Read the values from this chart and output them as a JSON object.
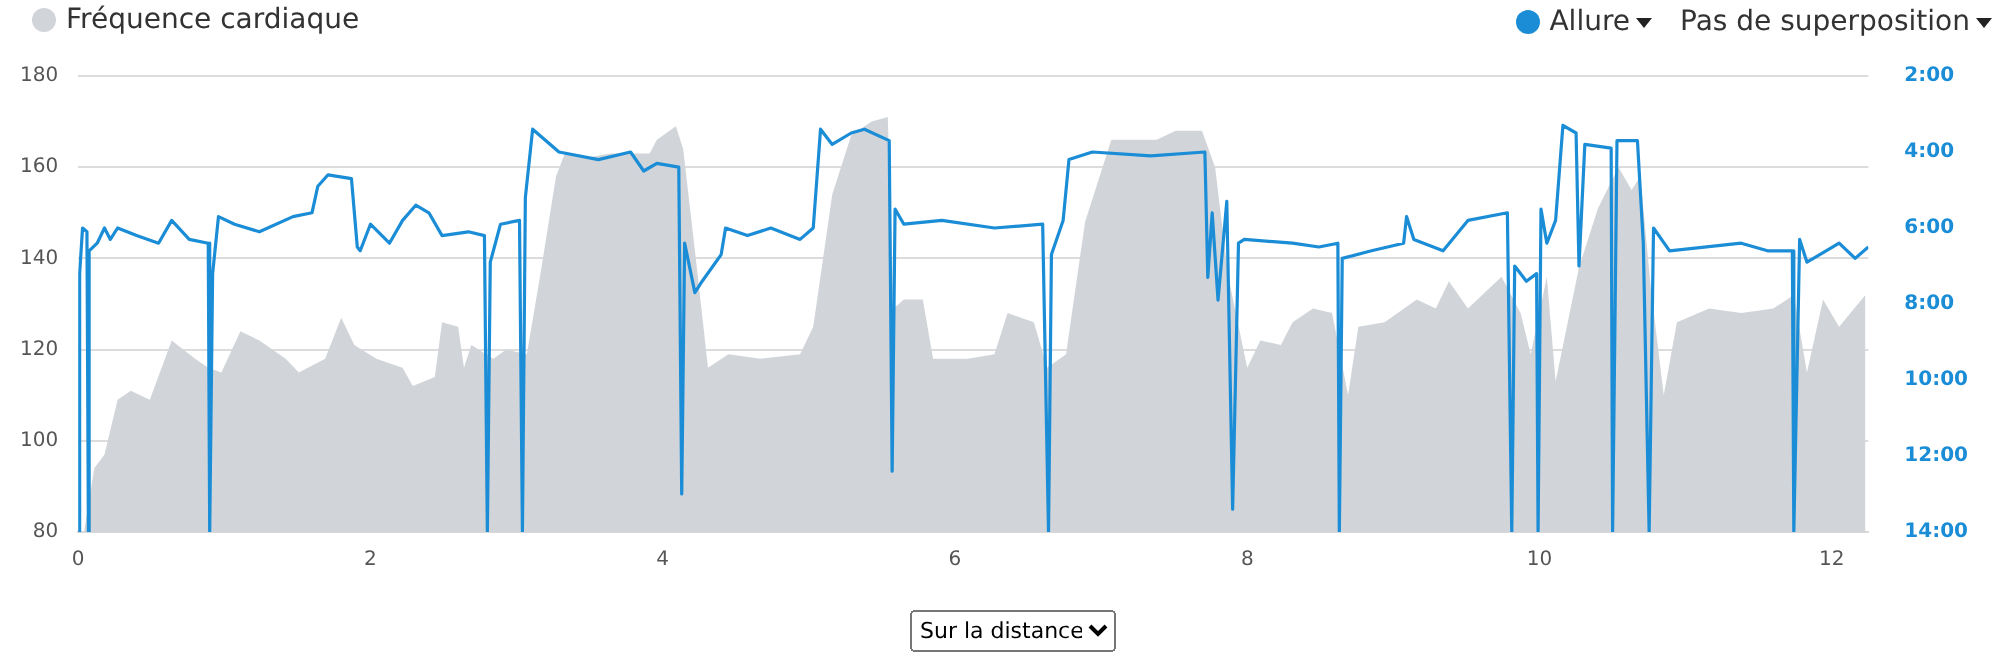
{
  "chart_data": {
    "type": "area",
    "xlim": [
      0,
      12.25
    ],
    "xticks": [
      0,
      2,
      4,
      6,
      8,
      10,
      12
    ],
    "ylim": [
      80,
      180
    ],
    "yticks": [
      80,
      100,
      120,
      140,
      160,
      180
    ],
    "y2lim": [
      14,
      2
    ],
    "y2ticks": [
      {
        "value": 2,
        "label": "2:00"
      },
      {
        "value": 4,
        "label": "4:00"
      },
      {
        "value": 6,
        "label": "6:00"
      },
      {
        "value": 8,
        "label": "8:00"
      },
      {
        "value": 10,
        "label": "10:00"
      },
      {
        "value": 12,
        "label": "12:00"
      },
      {
        "value": 14,
        "label": "14:00"
      }
    ],
    "grid": "y",
    "legend": "top",
    "marker": "none",
    "annotations": [
      "Pas de superposition",
      "Sur la distance"
    ],
    "series": [
      {
        "name": "Fréquence cardiaque",
        "type": "area",
        "color": "#d1d5da",
        "x": [
          0.04,
          0.11,
          0.18,
          0.27,
          0.36,
          0.49,
          0.64,
          0.8,
          0.89,
          0.98,
          1.11,
          1.24,
          1.42,
          1.51,
          1.69,
          1.8,
          1.89,
          2.04,
          2.22,
          2.29,
          2.44,
          2.49,
          2.6,
          2.64,
          2.69,
          2.84,
          2.93,
          3.07,
          3.16,
          3.27,
          3.33,
          3.47,
          3.64,
          3.91,
          3.96,
          4.09,
          4.14,
          4.23,
          4.31,
          4.45,
          4.67,
          4.94,
          5.03,
          5.16,
          5.29,
          5.43,
          5.54,
          5.58,
          5.65,
          5.78,
          5.85,
          6.09,
          6.27,
          6.36,
          6.54,
          6.63,
          6.76,
          6.89,
          7.07,
          7.38,
          7.51,
          7.69,
          7.78,
          7.87,
          8.0,
          8.09,
          8.23,
          8.31,
          8.45,
          8.58,
          8.69,
          8.76,
          8.94,
          9.16,
          9.29,
          9.38,
          9.51,
          9.74,
          9.87,
          9.94,
          10.05,
          10.11,
          10.27,
          10.4,
          10.54,
          10.63,
          10.69,
          10.76,
          10.85,
          10.94,
          11.16,
          11.38,
          11.6,
          11.74,
          11.83,
          11.94,
          12.05,
          12.23
        ],
        "values": [
          80,
          94,
          97,
          109,
          111,
          109,
          122,
          118,
          116,
          115,
          124,
          122,
          118,
          115,
          118,
          127,
          121,
          118,
          116,
          112,
          114,
          126,
          125,
          116,
          121,
          118,
          120,
          119,
          136,
          158,
          163,
          162,
          163,
          163,
          166,
          169,
          164,
          139,
          116,
          119,
          118,
          119,
          125,
          154,
          167,
          170,
          171,
          129,
          131,
          131,
          118,
          118,
          119,
          128,
          126,
          116,
          119,
          148,
          166,
          166,
          168,
          168,
          160,
          136,
          116,
          122,
          121,
          126,
          129,
          128,
          110,
          125,
          126,
          131,
          129,
          135,
          129,
          136,
          128,
          119,
          136,
          113,
          138,
          151,
          160,
          155,
          158,
          134,
          110,
          126,
          129,
          128,
          129,
          132,
          115,
          131,
          125,
          132
        ]
      },
      {
        "name": "Allure",
        "type": "line",
        "axis": "y2",
        "color": "#1a8dd6",
        "x": [
          0,
          0.01,
          0.03,
          0.06,
          0.07,
          0.075,
          0.13,
          0.18,
          0.22,
          0.27,
          0.4,
          0.55,
          0.64,
          0.76,
          0.89,
          0.9,
          0.92,
          0.96,
          1.07,
          1.24,
          1.47,
          1.6,
          1.64,
          1.71,
          1.87,
          1.91,
          1.93,
          2.0,
          2.13,
          2.22,
          2.31,
          2.4,
          2.49,
          2.67,
          2.78,
          2.8,
          2.82,
          2.89,
          3.02,
          3.04,
          3.06,
          3.11,
          3.29,
          3.56,
          3.78,
          3.87,
          3.96,
          4.11,
          4.13,
          4.15,
          4.22,
          4.27,
          4.4,
          4.43,
          4.58,
          4.74,
          4.94,
          5.03,
          5.08,
          5.16,
          5.29,
          5.38,
          5.55,
          5.57,
          5.59,
          5.65,
          5.91,
          6.27,
          6.6,
          6.64,
          6.66,
          6.74,
          6.78,
          6.94,
          7.34,
          7.71,
          7.73,
          7.76,
          7.8,
          7.86,
          7.9,
          7.94,
          7.98,
          8.31,
          8.49,
          8.62,
          8.63,
          8.65,
          8.85,
          9.07,
          9.09,
          9.14,
          9.34,
          9.51,
          9.78,
          9.81,
          9.83,
          9.91,
          9.98,
          9.99,
          10.01,
          10.05,
          10.11,
          10.16,
          10.25,
          10.27,
          10.31,
          10.49,
          10.5,
          10.53,
          10.67,
          10.71,
          10.75,
          10.78,
          10.89,
          11.38,
          11.56,
          11.73,
          11.74,
          11.78,
          11.83,
          12.05,
          12.16,
          12.25
        ],
        "values": [
          14,
          7.2,
          6.0,
          6.1,
          14,
          6.6,
          6.4,
          6.0,
          6.3,
          6.0,
          6.2,
          6.4,
          5.8,
          6.3,
          6.4,
          14,
          7.2,
          5.7,
          5.9,
          6.1,
          5.7,
          5.6,
          4.9,
          4.6,
          4.7,
          6.5,
          6.6,
          5.9,
          6.4,
          5.8,
          5.4,
          5.6,
          6.2,
          6.1,
          6.2,
          14,
          6.9,
          5.9,
          5.8,
          14,
          5.2,
          3.4,
          4.0,
          4.2,
          4.0,
          4.5,
          4.3,
          4.4,
          13.0,
          6.4,
          7.7,
          7.4,
          6.7,
          6.0,
          6.2,
          6.0,
          6.3,
          6.0,
          3.4,
          3.8,
          3.5,
          3.4,
          3.7,
          12.4,
          5.5,
          5.9,
          5.8,
          6.0,
          5.9,
          14,
          6.7,
          5.8,
          4.2,
          4.0,
          4.1,
          4.0,
          7.3,
          5.6,
          7.9,
          5.3,
          13.4,
          6.4,
          6.3,
          6.4,
          6.5,
          6.4,
          14,
          6.8,
          6.6,
          6.4,
          5.7,
          6.3,
          6.6,
          5.8,
          5.6,
          14,
          7.0,
          7.4,
          7.2,
          14,
          5.5,
          6.4,
          5.8,
          3.3,
          3.5,
          7.0,
          3.8,
          3.9,
          14,
          3.7,
          3.7,
          6.4,
          14,
          6.0,
          6.6,
          6.4,
          6.6,
          6.6,
          14,
          6.3,
          6.9,
          6.4,
          6.8,
          6.5
        ]
      }
    ]
  }
}
